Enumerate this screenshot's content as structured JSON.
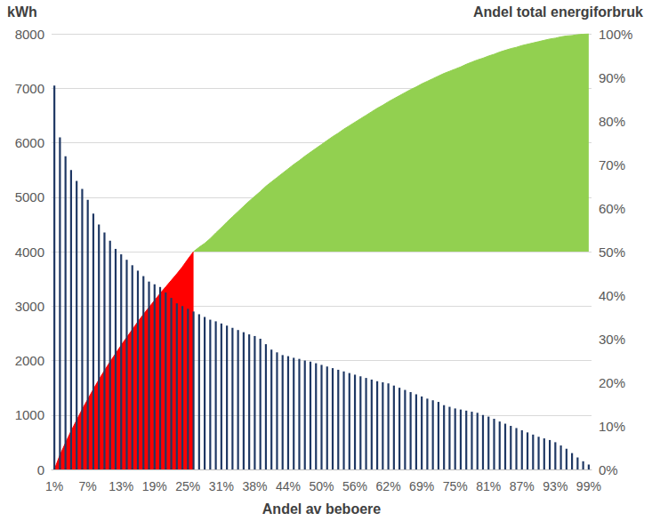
{
  "chart_data": {
    "type": "bar",
    "x_label": "Andel av beboere",
    "y_label": "kWh",
    "y2_label": "Andel total energiforbruk",
    "categories": [
      "1%",
      null,
      null,
      null,
      null,
      null,
      "7%",
      null,
      null,
      null,
      null,
      null,
      "13%",
      null,
      null,
      null,
      null,
      null,
      "19%",
      null,
      null,
      null,
      null,
      null,
      "25%",
      null,
      null,
      null,
      null,
      null,
      "31%",
      null,
      null,
      null,
      null,
      null,
      "38%",
      null,
      null,
      null,
      null,
      null,
      "44%",
      null,
      null,
      null,
      null,
      null,
      "50%",
      null,
      null,
      null,
      null,
      null,
      "56%",
      null,
      null,
      null,
      null,
      null,
      "62%",
      null,
      null,
      null,
      null,
      null,
      "69%",
      null,
      null,
      null,
      null,
      null,
      "75%",
      null,
      null,
      null,
      null,
      null,
      "81%",
      null,
      null,
      null,
      null,
      null,
      "87%",
      null,
      null,
      null,
      null,
      null,
      "93%",
      null,
      null,
      null,
      null,
      null,
      "99%"
    ],
    "series": [
      {
        "type": "bar",
        "color": "#1f3864",
        "values": [
          7050,
          6100,
          5750,
          5500,
          5300,
          5150,
          4950,
          4700,
          4500,
          4350,
          4200,
          4050,
          3950,
          3850,
          3750,
          3650,
          3550,
          3450,
          3400,
          3350,
          3250,
          3150,
          3050,
          3000,
          2950,
          2900,
          2850,
          2800,
          2750,
          2720,
          2680,
          2640,
          2600,
          2560,
          2520,
          2480,
          2450,
          2400,
          2300,
          2200,
          2150,
          2100,
          2080,
          2050,
          2030,
          2000,
          1980,
          1950,
          1920,
          1890,
          1860,
          1830,
          1800,
          1770,
          1740,
          1710,
          1680,
          1650,
          1620,
          1600,
          1580,
          1540,
          1500,
          1460,
          1420,
          1380,
          1340,
          1300,
          1270,
          1240,
          1180,
          1150,
          1120,
          1100,
          1080,
          1060,
          1040,
          1000,
          970,
          930,
          880,
          840,
          800,
          760,
          720,
          680,
          640,
          600,
          570,
          540,
          500,
          440,
          380,
          300,
          220,
          150,
          90
        ]
      },
      {
        "type": "area",
        "axis": "y2",
        "color": "#ff0000",
        "values": [
          0,
          3.3,
          6.1,
          8.8,
          11.3,
          13.8,
          16.1,
          18.4,
          20.6,
          22.7,
          24.7,
          26.6,
          28.5,
          30.3,
          32.1,
          33.9,
          35.6,
          37.2,
          38.8,
          40.4,
          41.9,
          43.4,
          44.9,
          46.5,
          48.3,
          50,
          null,
          null,
          null,
          null,
          null,
          null,
          null,
          null,
          null,
          null,
          null,
          null,
          null,
          null,
          null,
          null,
          null,
          null,
          null,
          null,
          null,
          null,
          null,
          null,
          null,
          null,
          null,
          null,
          null,
          null,
          null,
          null,
          null,
          null,
          null,
          null,
          null,
          null,
          null,
          null,
          null,
          null,
          null,
          null,
          null,
          null,
          null,
          null,
          null,
          null,
          null,
          null,
          null,
          null,
          null,
          null,
          null,
          null,
          null,
          null,
          null,
          null,
          null,
          null,
          null,
          null,
          null,
          null,
          null,
          null,
          null
        ]
      },
      {
        "type": "area",
        "axis": "y2",
        "color": "#92d050",
        "base": 50,
        "values": [
          null,
          null,
          null,
          null,
          null,
          null,
          null,
          null,
          null,
          null,
          null,
          null,
          null,
          null,
          null,
          null,
          null,
          null,
          null,
          null,
          null,
          null,
          null,
          null,
          null,
          50,
          51.0,
          51.9,
          53.0,
          54.3,
          55.5,
          56.8,
          58.0,
          59.2,
          60.4,
          61.6,
          62.7,
          63.8,
          65.0,
          66.0,
          67.0,
          68.0,
          69.0,
          70.0,
          70.9,
          71.9,
          72.8,
          73.7,
          74.6,
          75.5,
          76.4,
          77.2,
          78.1,
          78.9,
          79.7,
          80.5,
          81.3,
          82.1,
          82.9,
          83.6,
          84.4,
          85.1,
          85.8,
          86.5,
          87.2,
          87.8,
          88.5,
          89.1,
          89.7,
          90.3,
          90.9,
          91.4,
          91.9,
          92.4,
          93.0,
          93.5,
          94.0,
          94.4,
          94.9,
          95.3,
          95.8,
          96.2,
          96.6,
          96.9,
          97.3,
          97.6,
          97.9,
          98.2,
          98.5,
          98.8,
          99.0,
          99.3,
          99.5,
          99.6,
          99.8,
          99.9,
          100
        ]
      }
    ],
    "ylim": [
      0,
      8000
    ],
    "yticks": [
      0,
      1000,
      2000,
      3000,
      4000,
      5000,
      6000,
      7000,
      8000
    ],
    "y2lim": [
      0,
      100
    ],
    "y2ticks": [
      {
        "value": 0,
        "label": "0%"
      },
      {
        "value": 10,
        "label": "10%"
      },
      {
        "value": 20,
        "label": "20%"
      },
      {
        "value": 30,
        "label": "30%"
      },
      {
        "value": 40,
        "label": "40%"
      },
      {
        "value": 50,
        "label": "50%"
      },
      {
        "value": 60,
        "label": "60%"
      },
      {
        "value": 70,
        "label": "70%"
      },
      {
        "value": 80,
        "label": "80%"
      },
      {
        "value": 90,
        "label": "90%"
      },
      {
        "value": 100,
        "label": "100%"
      }
    ],
    "grid": true
  }
}
